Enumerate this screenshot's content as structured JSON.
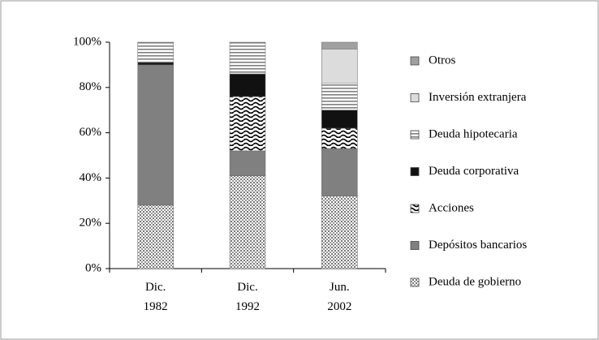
{
  "chart_data": {
    "type": "stacked_bar",
    "categories": [
      "Dic. 1982",
      "Dic. 1992",
      "Jun. 2002"
    ],
    "series": [
      {
        "name": "Deuda de gobierno",
        "color": "#9a9a9a",
        "pattern": "dots",
        "values": [
          28,
          41,
          32
        ]
      },
      {
        "name": "Depósitos bancarios",
        "color": "#808080",
        "values": [
          62,
          11,
          21
        ]
      },
      {
        "name": "Acciones",
        "color": "#000000",
        "pattern": "waves",
        "values": [
          0,
          24,
          9
        ]
      },
      {
        "name": "Deuda corporativa",
        "color": "#111111",
        "values": [
          1,
          10,
          8
        ]
      },
      {
        "name": "Deuda hipotecaria",
        "color": "#808080",
        "pattern": "stripes",
        "values": [
          9,
          14,
          12
        ]
      },
      {
        "name": "Inversión extranjera",
        "color": "#dcdcdc",
        "values": [
          0,
          0,
          15
        ]
      },
      {
        "name": "Otros",
        "color": "#a0a0a0",
        "values": [
          0,
          0,
          3
        ]
      }
    ],
    "ylim": [
      0,
      100
    ],
    "yticks": [
      {
        "value": 0,
        "label": "0%"
      },
      {
        "value": 20,
        "label": "20%"
      },
      {
        "value": 40,
        "label": "40%"
      },
      {
        "value": 60,
        "label": "60%"
      },
      {
        "value": 80,
        "label": "80%"
      },
      {
        "value": 100,
        "label": "100%"
      }
    ],
    "legend": "right"
  }
}
